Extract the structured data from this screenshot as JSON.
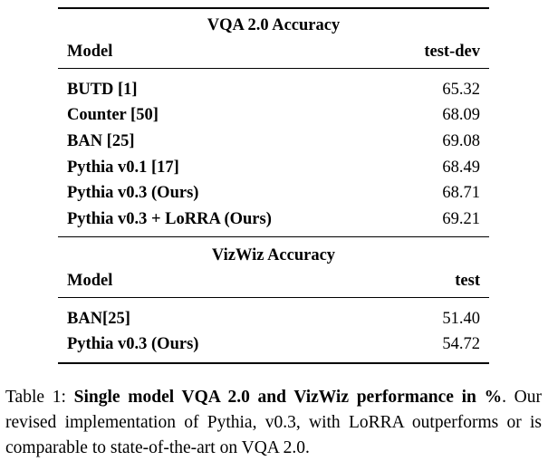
{
  "vqa": {
    "title": "VQA 2.0 Accuracy",
    "col_model": "Model",
    "col_score": "test-dev",
    "rows": [
      {
        "model": "BUTD [1]",
        "score": "65.32"
      },
      {
        "model": "Counter [50]",
        "score": "68.09"
      },
      {
        "model": "BAN [25]",
        "score": "69.08"
      },
      {
        "model": "Pythia v0.1 [17]",
        "score": "68.49"
      },
      {
        "model": "Pythia v0.3 (Ours)",
        "score": "68.71"
      },
      {
        "model": "Pythia v0.3 + LoRRA (Ours)",
        "score": "69.21"
      }
    ]
  },
  "vizwiz": {
    "title": "VizWiz Accuracy",
    "col_model": "Model",
    "col_score": "test",
    "rows": [
      {
        "model": "BAN[25]",
        "score": "51.40"
      },
      {
        "model": "Pythia v0.3 (Ours)",
        "score": "54.72"
      }
    ]
  },
  "caption": {
    "label": "Table 1: ",
    "bold": "Single model VQA 2.0 and VizWiz performance in %",
    "rest": ". Our revised implementation of Pythia, v0.3, with LoRRA outperforms or is comparable to state-of-the-art on VQA 2.0."
  }
}
